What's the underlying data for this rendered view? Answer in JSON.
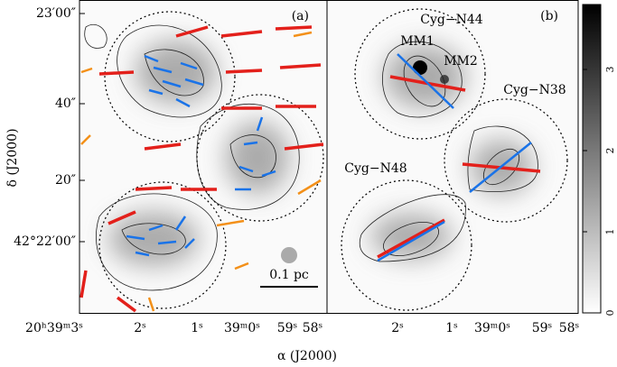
{
  "figure": {
    "y_label": "δ (J2000)",
    "x_label": "α (J2000)",
    "y_ticks": [
      "23′00″",
      "40″",
      "20″",
      "42°22′00″"
    ],
    "panel_a": {
      "label": "(a)",
      "x_ticks": [
        "20ʰ39ᵐ3ˢ",
        "2ˢ",
        "1ˢ",
        "39ᵐ0ˢ",
        "59ˢ",
        "58ˢ"
      ],
      "scale_bar": "0.1 pc"
    },
    "panel_b": {
      "label": "(b)",
      "x_ticks": [
        "2ˢ",
        "1ˢ",
        "39ᵐ0ˢ",
        "59ˢ",
        "58ˢ"
      ],
      "sources": [
        "Cyg−N44",
        "MM1",
        "MM2",
        "Cyg−N38",
        "Cyg−N48"
      ]
    },
    "colorbar": {
      "lim": [
        0,
        3.8
      ],
      "ticks": [
        0,
        1,
        2,
        3
      ]
    }
  }
}
